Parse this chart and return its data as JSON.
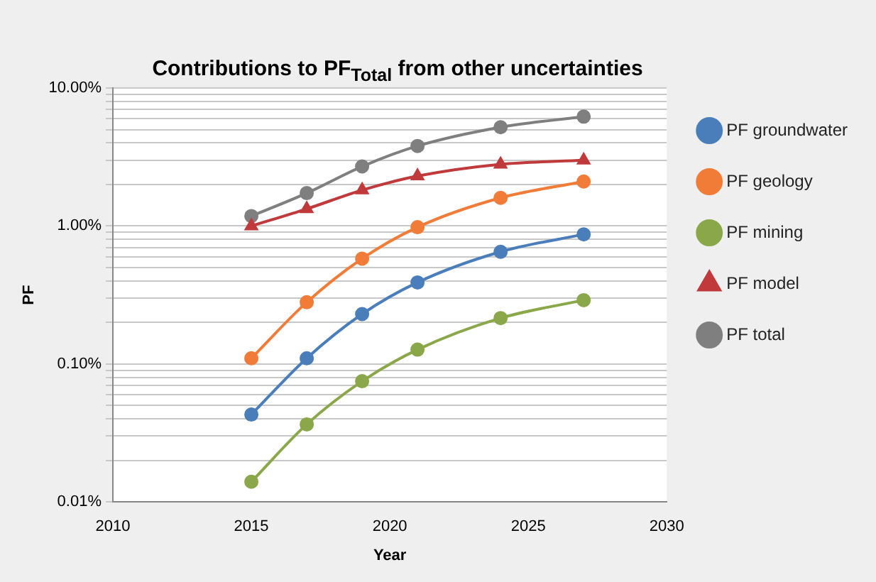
{
  "chart_data": {
    "type": "line",
    "title": "Contributions to PF$_{Total}$ from other uncertainties",
    "xlabel": "Year",
    "ylabel": "PF",
    "log": "y",
    "grid": "y",
    "legend": "right",
    "xlim": [
      2010,
      2030
    ],
    "xticks": [
      2010,
      2015,
      2020,
      2025,
      2030
    ],
    "ylim": [
      0.01,
      10
    ],
    "yticks": [
      {
        "value": 0.01,
        "label": "0.01%"
      },
      {
        "value": 0.02,
        "label": null
      },
      {
        "value": 0.03,
        "label": null
      },
      {
        "value": 0.04,
        "label": null
      },
      {
        "value": 0.05,
        "label": null
      },
      {
        "value": 0.06,
        "label": null
      },
      {
        "value": 0.07,
        "label": null
      },
      {
        "value": 0.08,
        "label": null
      },
      {
        "value": 0.09,
        "label": null
      },
      {
        "value": 0.1,
        "label": "0.10%"
      },
      {
        "value": 0.2,
        "label": null
      },
      {
        "value": 0.3,
        "label": null
      },
      {
        "value": 0.4,
        "label": null
      },
      {
        "value": 0.5,
        "label": null
      },
      {
        "value": 0.6,
        "label": null
      },
      {
        "value": 0.7,
        "label": null
      },
      {
        "value": 0.8,
        "label": null
      },
      {
        "value": 0.9,
        "label": null
      },
      {
        "value": 1,
        "label": "1.00%"
      },
      {
        "value": 2,
        "label": null
      },
      {
        "value": 3,
        "label": null
      },
      {
        "value": 4,
        "label": null
      },
      {
        "value": 5,
        "label": null
      },
      {
        "value": 6,
        "label": null
      },
      {
        "value": 7,
        "label": null
      },
      {
        "value": 8,
        "label": null
      },
      {
        "value": 9,
        "label": null
      },
      {
        "value": 10,
        "label": "10.00%"
      }
    ],
    "x": [
      2015,
      2017,
      2019,
      2021,
      2024,
      2027
    ],
    "series": [
      {
        "name": "PF groundwater",
        "color": "#4a7ebb",
        "marker": "circle",
        "values": [
          0.043,
          0.11,
          0.23,
          0.39,
          0.65,
          0.87
        ]
      },
      {
        "name": "PF geology",
        "color": "#f07c38",
        "marker": "circle",
        "values": [
          0.11,
          0.28,
          0.58,
          0.98,
          1.6,
          2.1
        ]
      },
      {
        "name": "PF mining",
        "color": "#8aa84a",
        "marker": "circle",
        "values": [
          0.014,
          0.0365,
          0.075,
          0.127,
          0.215,
          0.29
        ]
      },
      {
        "name": "PF model",
        "color": "#c0393b",
        "marker": "triangle",
        "values": [
          1.0,
          1.33,
          1.82,
          2.3,
          2.8,
          3.0
        ]
      },
      {
        "name": "PF total",
        "color": "#7f7f7f",
        "marker": "circle",
        "values": [
          1.18,
          1.73,
          2.7,
          3.8,
          5.2,
          6.2
        ]
      }
    ]
  }
}
